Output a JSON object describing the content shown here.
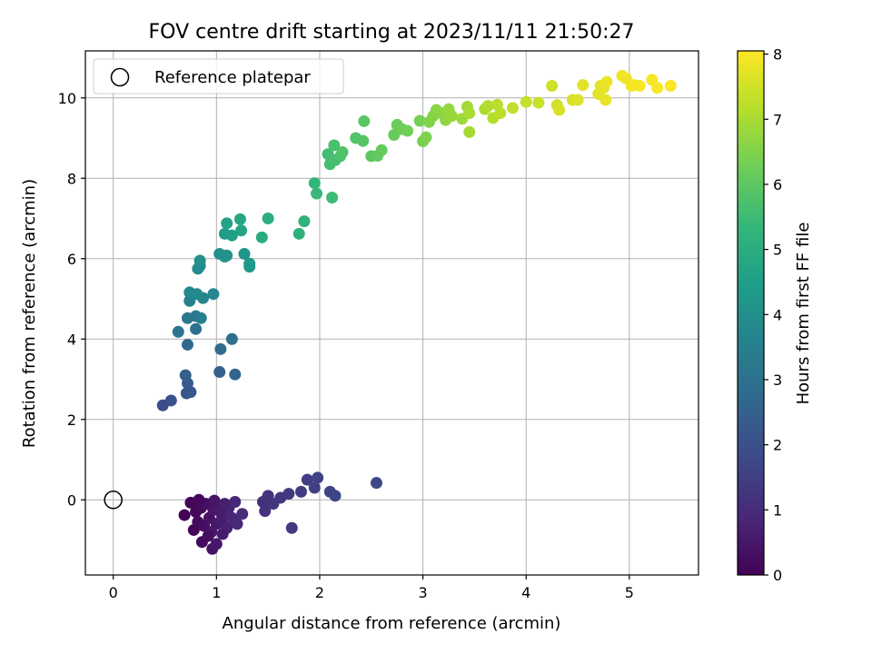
{
  "chart_data": {
    "type": "scatter",
    "title": "FOV centre drift starting at 2023/11/11 21:50:27",
    "xlabel": "Angular distance from reference (arcmin)",
    "ylabel": "Rotation from reference (arcmin)",
    "xlim": [
      -0.27,
      5.67
    ],
    "ylim": [
      -1.87,
      11.17
    ],
    "xticks": [
      "0",
      "1",
      "2",
      "3",
      "4",
      "5"
    ],
    "yticks": [
      "0",
      "2",
      "4",
      "6",
      "8",
      "10"
    ],
    "grid": true,
    "legend": {
      "placement": "top-left",
      "entries": [
        "Reference platepar"
      ]
    },
    "reference_point": {
      "x": 0,
      "y": 0
    },
    "colorbar": {
      "label": "Hours from first FF file",
      "range": [
        0,
        8.05
      ],
      "ticks": [
        "0",
        "1",
        "2",
        "3",
        "4",
        "5",
        "6",
        "7",
        "8"
      ],
      "colormap": [
        "#440154",
        "#482878",
        "#3e4989",
        "#31688e",
        "#26828e",
        "#1f9e89",
        "#35b779",
        "#6ece58",
        "#b5de2b",
        "#fde725"
      ]
    },
    "points": [
      {
        "x": 0.69,
        "y": -0.38,
        "c": 0.05
      },
      {
        "x": 0.75,
        "y": -0.07,
        "c": 0.1
      },
      {
        "x": 0.8,
        "y": -0.3,
        "c": 0.15
      },
      {
        "x": 0.82,
        "y": -0.55,
        "c": 0.2
      },
      {
        "x": 0.85,
        "y": -0.2,
        "c": 0.25
      },
      {
        "x": 0.88,
        "y": -0.65,
        "c": 0.3
      },
      {
        "x": 0.9,
        "y": -0.1,
        "c": 0.35
      },
      {
        "x": 0.93,
        "y": -0.45,
        "c": 0.4
      },
      {
        "x": 0.95,
        "y": -0.8,
        "c": 0.45
      },
      {
        "x": 0.97,
        "y": -0.25,
        "c": 0.5
      },
      {
        "x": 1.0,
        "y": -0.6,
        "c": 0.55
      },
      {
        "x": 1.02,
        "y": -0.15,
        "c": 0.6
      },
      {
        "x": 1.05,
        "y": -0.5,
        "c": 0.65
      },
      {
        "x": 1.07,
        "y": -0.35,
        "c": 0.7
      },
      {
        "x": 1.1,
        "y": -0.7,
        "c": 0.75
      },
      {
        "x": 1.12,
        "y": -0.2,
        "c": 0.8
      },
      {
        "x": 1.15,
        "y": -0.45,
        "c": 0.85
      },
      {
        "x": 1.18,
        "y": -0.05,
        "c": 0.9
      },
      {
        "x": 1.2,
        "y": -0.6,
        "c": 0.95
      },
      {
        "x": 1.25,
        "y": -0.35,
        "c": 1.0
      },
      {
        "x": 0.78,
        "y": -0.75,
        "c": 0.12
      },
      {
        "x": 0.86,
        "y": -1.05,
        "c": 0.22
      },
      {
        "x": 0.92,
        "y": -0.9,
        "c": 0.32
      },
      {
        "x": 0.96,
        "y": -1.22,
        "c": 0.42
      },
      {
        "x": 1.0,
        "y": -1.1,
        "c": 0.52
      },
      {
        "x": 1.06,
        "y": -0.85,
        "c": 0.62
      },
      {
        "x": 0.83,
        "y": 0.0,
        "c": 0.18
      },
      {
        "x": 0.98,
        "y": -0.02,
        "c": 0.48
      },
      {
        "x": 1.03,
        "y": -0.28,
        "c": 0.58
      },
      {
        "x": 1.08,
        "y": -0.1,
        "c": 0.68
      },
      {
        "x": 1.45,
        "y": -0.05,
        "c": 1.1
      },
      {
        "x": 1.47,
        "y": -0.28,
        "c": 1.15
      },
      {
        "x": 1.5,
        "y": 0.1,
        "c": 1.2
      },
      {
        "x": 1.55,
        "y": -0.1,
        "c": 1.25
      },
      {
        "x": 1.62,
        "y": 0.05,
        "c": 1.3
      },
      {
        "x": 1.7,
        "y": 0.15,
        "c": 1.35
      },
      {
        "x": 1.73,
        "y": -0.7,
        "c": 1.4
      },
      {
        "x": 1.82,
        "y": 0.2,
        "c": 1.45
      },
      {
        "x": 1.88,
        "y": 0.5,
        "c": 1.5
      },
      {
        "x": 1.95,
        "y": 0.3,
        "c": 1.55
      },
      {
        "x": 1.98,
        "y": 0.55,
        "c": 1.6
      },
      {
        "x": 2.1,
        "y": 0.2,
        "c": 1.65
      },
      {
        "x": 2.15,
        "y": 0.1,
        "c": 1.7
      },
      {
        "x": 2.55,
        "y": 0.42,
        "c": 1.75
      },
      {
        "x": 0.48,
        "y": 2.35,
        "c": 1.9
      },
      {
        "x": 0.56,
        "y": 2.47,
        "c": 2.0
      },
      {
        "x": 0.71,
        "y": 2.65,
        "c": 2.1
      },
      {
        "x": 0.75,
        "y": 2.68,
        "c": 2.2
      },
      {
        "x": 0.72,
        "y": 2.9,
        "c": 2.3
      },
      {
        "x": 0.7,
        "y": 3.1,
        "c": 2.4
      },
      {
        "x": 1.03,
        "y": 3.18,
        "c": 2.5
      },
      {
        "x": 1.18,
        "y": 3.12,
        "c": 2.6
      },
      {
        "x": 0.72,
        "y": 3.86,
        "c": 2.7
      },
      {
        "x": 1.04,
        "y": 3.75,
        "c": 2.8
      },
      {
        "x": 1.15,
        "y": 4.0,
        "c": 2.9
      },
      {
        "x": 0.8,
        "y": 4.25,
        "c": 3.0
      },
      {
        "x": 0.63,
        "y": 4.18,
        "c": 3.1
      },
      {
        "x": 0.72,
        "y": 4.52,
        "c": 3.2
      },
      {
        "x": 0.8,
        "y": 4.57,
        "c": 3.3
      },
      {
        "x": 0.85,
        "y": 4.52,
        "c": 3.4
      },
      {
        "x": 0.74,
        "y": 4.95,
        "c": 3.5
      },
      {
        "x": 0.87,
        "y": 5.02,
        "c": 3.6
      },
      {
        "x": 0.97,
        "y": 5.12,
        "c": 3.7
      },
      {
        "x": 0.74,
        "y": 5.16,
        "c": 3.75
      },
      {
        "x": 0.81,
        "y": 5.12,
        "c": 3.8
      },
      {
        "x": 0.82,
        "y": 5.75,
        "c": 3.85
      },
      {
        "x": 0.84,
        "y": 5.82,
        "c": 3.9
      },
      {
        "x": 0.84,
        "y": 5.95,
        "c": 3.95
      },
      {
        "x": 1.03,
        "y": 6.12,
        "c": 4.0
      },
      {
        "x": 1.08,
        "y": 6.05,
        "c": 4.05
      },
      {
        "x": 1.1,
        "y": 6.08,
        "c": 4.1
      },
      {
        "x": 1.27,
        "y": 6.12,
        "c": 4.2
      },
      {
        "x": 1.32,
        "y": 5.8,
        "c": 4.3
      },
      {
        "x": 1.32,
        "y": 5.88,
        "c": 4.35
      },
      {
        "x": 1.08,
        "y": 6.62,
        "c": 4.4
      },
      {
        "x": 1.15,
        "y": 6.58,
        "c": 4.5
      },
      {
        "x": 1.1,
        "y": 6.88,
        "c": 4.6
      },
      {
        "x": 1.24,
        "y": 6.7,
        "c": 4.7
      },
      {
        "x": 1.23,
        "y": 6.98,
        "c": 4.8
      },
      {
        "x": 1.44,
        "y": 6.53,
        "c": 4.9
      },
      {
        "x": 1.5,
        "y": 7.0,
        "c": 5.0
      },
      {
        "x": 1.8,
        "y": 6.62,
        "c": 5.1
      },
      {
        "x": 1.85,
        "y": 6.93,
        "c": 5.2
      },
      {
        "x": 1.95,
        "y": 7.88,
        "c": 5.3
      },
      {
        "x": 1.97,
        "y": 7.62,
        "c": 5.4
      },
      {
        "x": 2.12,
        "y": 7.52,
        "c": 5.5
      },
      {
        "x": 2.08,
        "y": 8.6,
        "c": 5.55
      },
      {
        "x": 2.1,
        "y": 8.35,
        "c": 5.6
      },
      {
        "x": 2.15,
        "y": 8.45,
        "c": 5.65
      },
      {
        "x": 2.14,
        "y": 8.82,
        "c": 5.7
      },
      {
        "x": 2.2,
        "y": 8.55,
        "c": 5.75
      },
      {
        "x": 2.22,
        "y": 8.65,
        "c": 5.8
      },
      {
        "x": 2.35,
        "y": 9.0,
        "c": 5.85
      },
      {
        "x": 2.42,
        "y": 8.93,
        "c": 5.9
      },
      {
        "x": 2.43,
        "y": 9.42,
        "c": 5.95
      },
      {
        "x": 2.5,
        "y": 8.55,
        "c": 6.0
      },
      {
        "x": 2.56,
        "y": 8.56,
        "c": 6.05
      },
      {
        "x": 2.6,
        "y": 8.7,
        "c": 6.1
      },
      {
        "x": 2.72,
        "y": 9.08,
        "c": 6.15
      },
      {
        "x": 2.75,
        "y": 9.33,
        "c": 6.2
      },
      {
        "x": 2.8,
        "y": 9.22,
        "c": 6.25
      },
      {
        "x": 2.85,
        "y": 9.18,
        "c": 6.3
      },
      {
        "x": 2.97,
        "y": 9.43,
        "c": 6.35
      },
      {
        "x": 3.0,
        "y": 8.92,
        "c": 6.4
      },
      {
        "x": 3.03,
        "y": 9.02,
        "c": 6.45
      },
      {
        "x": 3.06,
        "y": 9.4,
        "c": 6.5
      },
      {
        "x": 3.1,
        "y": 9.55,
        "c": 6.55
      },
      {
        "x": 3.13,
        "y": 9.7,
        "c": 6.6
      },
      {
        "x": 3.18,
        "y": 9.62,
        "c": 6.65
      },
      {
        "x": 3.22,
        "y": 9.45,
        "c": 6.7
      },
      {
        "x": 3.25,
        "y": 9.72,
        "c": 6.75
      },
      {
        "x": 3.28,
        "y": 9.55,
        "c": 6.8
      },
      {
        "x": 3.38,
        "y": 9.48,
        "c": 6.85
      },
      {
        "x": 3.43,
        "y": 9.78,
        "c": 6.9
      },
      {
        "x": 3.45,
        "y": 9.15,
        "c": 6.95
      },
      {
        "x": 3.45,
        "y": 9.62,
        "c": 7.0
      },
      {
        "x": 3.6,
        "y": 9.72,
        "c": 7.05
      },
      {
        "x": 3.63,
        "y": 9.8,
        "c": 7.1
      },
      {
        "x": 3.68,
        "y": 9.5,
        "c": 7.15
      },
      {
        "x": 3.72,
        "y": 9.83,
        "c": 7.2
      },
      {
        "x": 3.75,
        "y": 9.62,
        "c": 7.25
      },
      {
        "x": 3.87,
        "y": 9.75,
        "c": 7.3
      },
      {
        "x": 4.0,
        "y": 9.9,
        "c": 7.35
      },
      {
        "x": 4.12,
        "y": 9.88,
        "c": 7.4
      },
      {
        "x": 4.25,
        "y": 10.3,
        "c": 7.45
      },
      {
        "x": 4.3,
        "y": 9.82,
        "c": 7.5
      },
      {
        "x": 4.32,
        "y": 9.7,
        "c": 7.55
      },
      {
        "x": 4.45,
        "y": 9.95,
        "c": 7.6
      },
      {
        "x": 4.5,
        "y": 9.95,
        "c": 7.65
      },
      {
        "x": 4.55,
        "y": 10.32,
        "c": 7.7
      },
      {
        "x": 4.7,
        "y": 10.1,
        "c": 7.72
      },
      {
        "x": 4.72,
        "y": 10.3,
        "c": 7.75
      },
      {
        "x": 4.75,
        "y": 10.25,
        "c": 7.78
      },
      {
        "x": 4.77,
        "y": 9.95,
        "c": 7.8
      },
      {
        "x": 4.78,
        "y": 10.4,
        "c": 7.82
      },
      {
        "x": 4.93,
        "y": 10.55,
        "c": 7.85
      },
      {
        "x": 4.97,
        "y": 10.48,
        "c": 7.88
      },
      {
        "x": 5.02,
        "y": 10.3,
        "c": 7.9
      },
      {
        "x": 5.05,
        "y": 10.32,
        "c": 7.93
      },
      {
        "x": 5.1,
        "y": 10.3,
        "c": 7.96
      },
      {
        "x": 5.22,
        "y": 10.45,
        "c": 7.98
      },
      {
        "x": 5.27,
        "y": 10.25,
        "c": 8.0
      },
      {
        "x": 5.4,
        "y": 10.3,
        "c": 8.02
      }
    ]
  }
}
